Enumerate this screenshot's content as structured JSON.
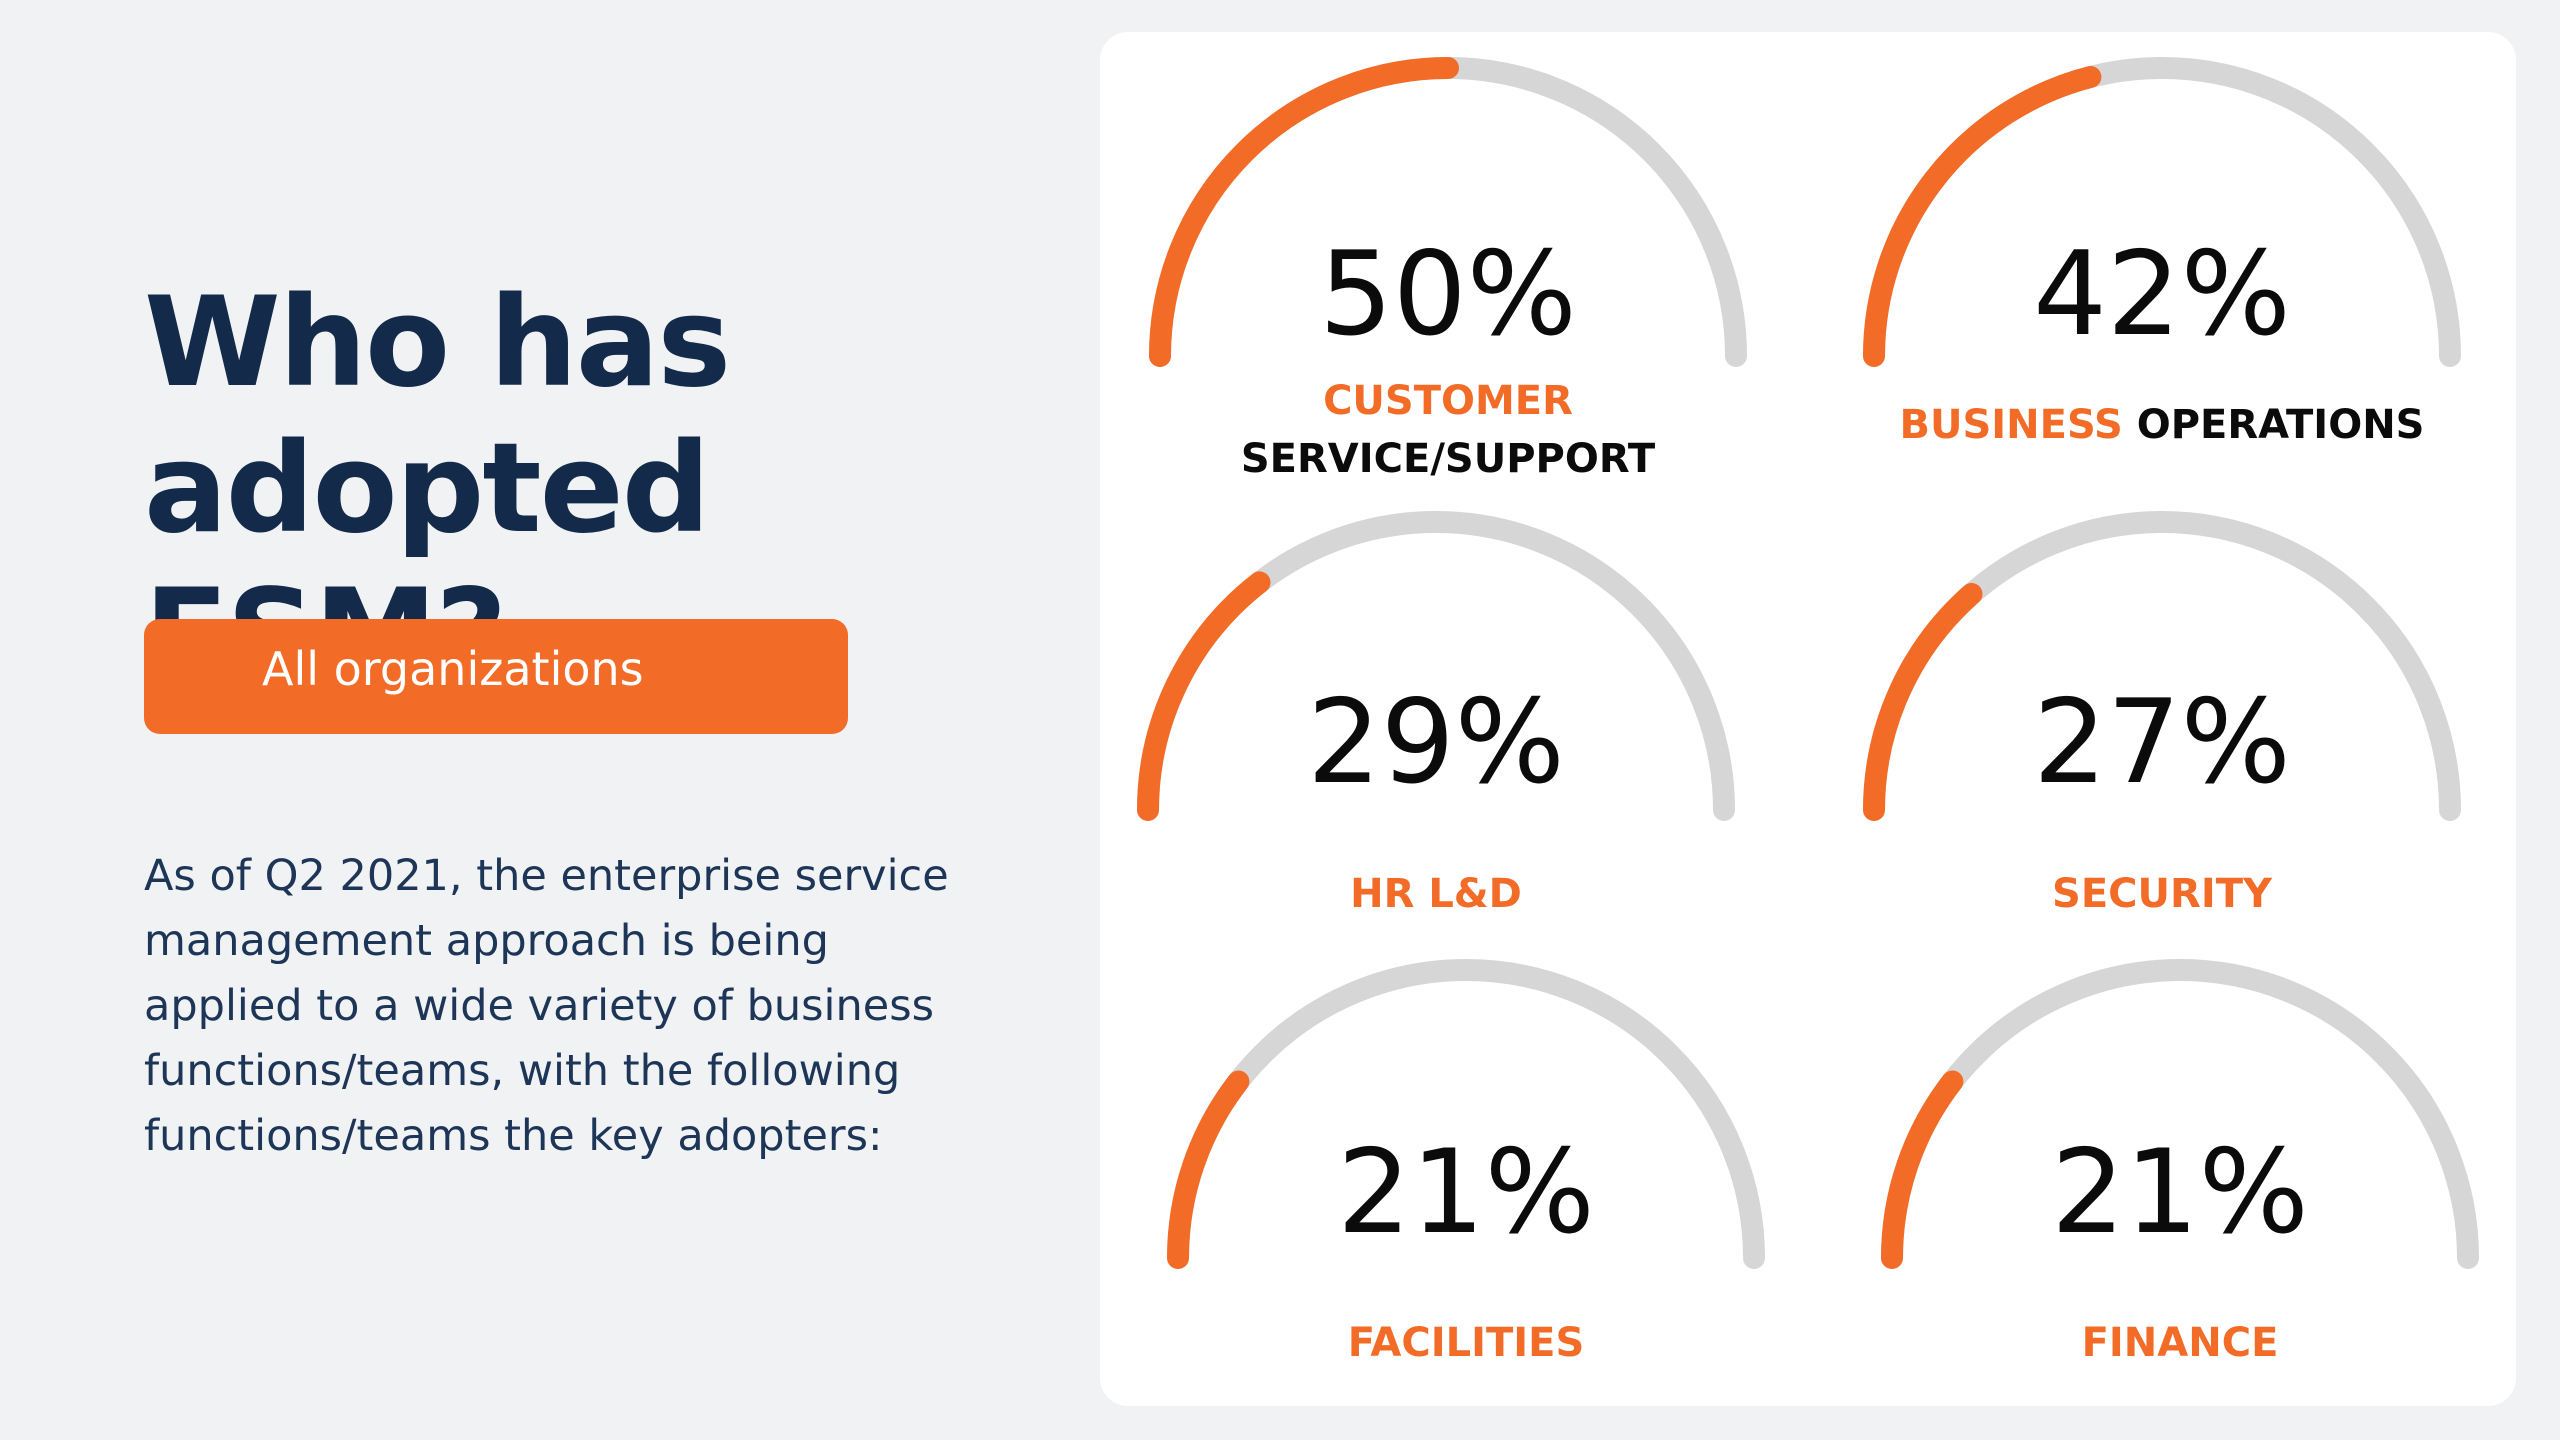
{
  "headline": {
    "line1": "Who has",
    "line2": "adopted ESM?"
  },
  "filter_button": {
    "label": "All organizations"
  },
  "intro": {
    "lines": [
      "As of Q2 2021, the enterprise service",
      "management approach is being",
      "applied to a wide variety of business",
      "functions/teams, with the following",
      "functions/teams the key adopters:"
    ]
  },
  "colors": {
    "accent": "#f26b27",
    "track": "#d6d6d6",
    "heading": "#132a4a",
    "background": "#f1f2f4",
    "card": "#ffffff"
  },
  "chart_data": {
    "type": "gauge",
    "series": [
      {
        "value": 50,
        "display": "50%",
        "label_parts": [
          {
            "text": "CUSTOMER",
            "color": "orange"
          },
          {
            "text": "SERVICE/SUPPORT",
            "color": "dark"
          }
        ]
      },
      {
        "value": 42,
        "display": "42%",
        "label_parts": [
          {
            "text": "BUSINESS",
            "color": "orange"
          },
          {
            "text": "OPERATIONS",
            "color": "dark"
          }
        ]
      },
      {
        "value": 29,
        "display": "29%",
        "label_parts": [
          {
            "text": "HR L&D",
            "color": "orange"
          }
        ]
      },
      {
        "value": 27,
        "display": "27%",
        "label_parts": [
          {
            "text": "SECURITY",
            "color": "orange"
          }
        ]
      },
      {
        "value": 21,
        "display": "21%",
        "label_parts": [
          {
            "text": "FACILITIES",
            "color": "orange"
          }
        ]
      },
      {
        "value": 21,
        "display": "21%",
        "label_parts": [
          {
            "text": "FINANCE",
            "color": "orange"
          }
        ]
      }
    ]
  }
}
